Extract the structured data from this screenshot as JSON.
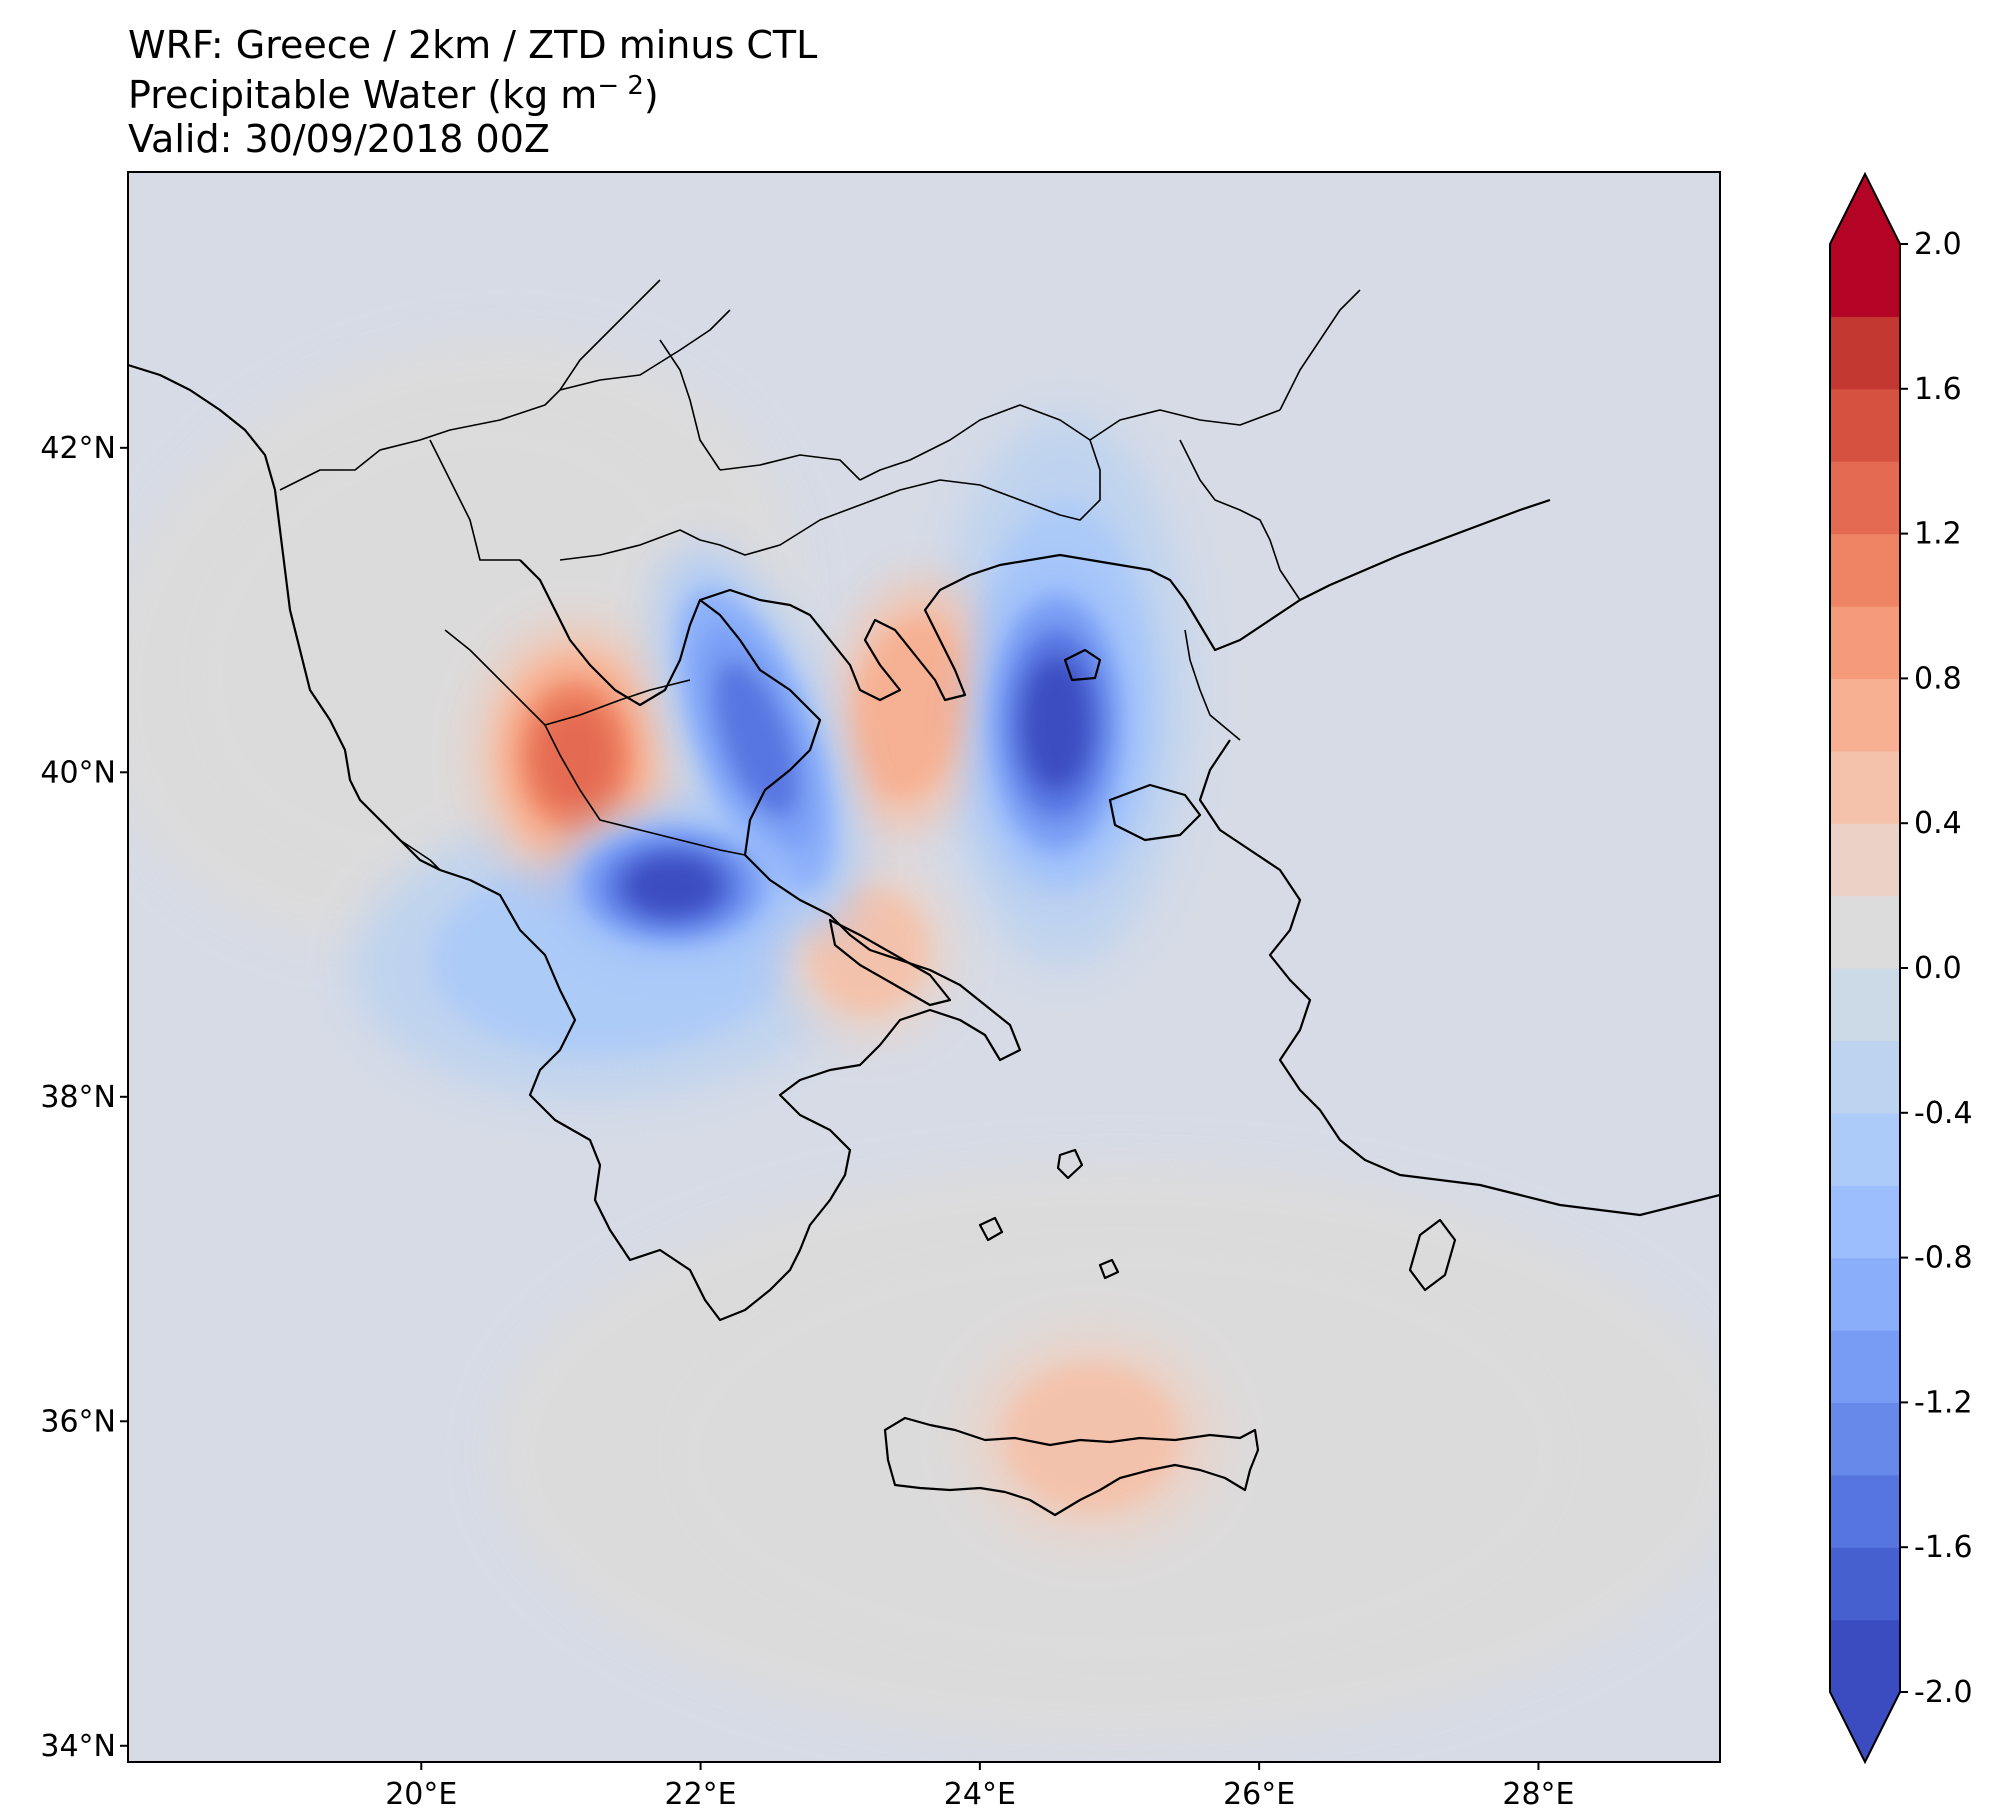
{
  "title": {
    "model_line": "WRF: Greece / 2km / ZTD minus CTL",
    "variable_line": "Precipitable Water (kg m",
    "variable_exponent": "− 2",
    "variable_close": ")",
    "valid_line": "Valid: 30/09/2018 00Z"
  },
  "map": {
    "lon_range": [
      17.9,
      29.3
    ],
    "lat_range": [
      33.9,
      43.7
    ],
    "lat_ticks": [
      {
        "value": 42,
        "label": "42°N"
      },
      {
        "value": 40,
        "label": "40°N"
      },
      {
        "value": 38,
        "label": "38°N"
      },
      {
        "value": 36,
        "label": "36°N"
      },
      {
        "value": 34,
        "label": "34°N"
      }
    ],
    "lon_ticks": [
      {
        "value": 20,
        "label": "20°E"
      },
      {
        "value": 22,
        "label": "22°E"
      },
      {
        "value": 24,
        "label": "24°E"
      },
      {
        "value": 26,
        "label": "26°E"
      },
      {
        "value": 28,
        "label": "28°E"
      }
    ],
    "background_color": "#d6dbe6",
    "features": [
      {
        "name": "western-balkans-positive",
        "lon": 20.2,
        "lat": 40.8,
        "rx_deg": 2.6,
        "ry_deg": 1.8,
        "rot": -25,
        "value": 0.15
      },
      {
        "name": "south-aegean-positive",
        "lon": 25.0,
        "lat": 35.8,
        "rx_deg": 4.5,
        "ry_deg": 1.8,
        "rot": 0,
        "value": 0.15
      },
      {
        "name": "crete-positive-core",
        "lon": 24.8,
        "lat": 35.9,
        "rx_deg": 0.9,
        "ry_deg": 0.65,
        "rot": 0,
        "value": 0.55
      },
      {
        "name": "east-aegean-negative-halo",
        "lon": 24.6,
        "lat": 40.5,
        "rx_deg": 0.9,
        "ry_deg": 1.7,
        "rot": 0,
        "value": -0.45
      },
      {
        "name": "central-greece-negative-halo",
        "lon": 21.4,
        "lat": 38.9,
        "rx_deg": 1.9,
        "ry_deg": 0.9,
        "rot": -5,
        "value": -0.5
      },
      {
        "name": "western-macedonia-positive",
        "lon": 21.1,
        "lat": 40.1,
        "rx_deg": 0.7,
        "ry_deg": 0.8,
        "rot": 0,
        "value": 1.35
      },
      {
        "name": "chalkidiki-positive",
        "lon": 23.5,
        "lat": 40.4,
        "rx_deg": 0.55,
        "ry_deg": 0.8,
        "rot": 10,
        "value": 0.75
      },
      {
        "name": "euboea-positive",
        "lon": 23.2,
        "lat": 38.9,
        "rx_deg": 0.6,
        "ry_deg": 0.55,
        "rot": 0,
        "value": 0.45
      },
      {
        "name": "thermaic-negative",
        "lon": 22.4,
        "lat": 40.2,
        "rx_deg": 0.55,
        "ry_deg": 1.25,
        "rot": -20,
        "value": -1.5
      },
      {
        "name": "thessaly-negative",
        "lon": 21.8,
        "lat": 39.3,
        "rx_deg": 0.85,
        "ry_deg": 0.45,
        "rot": 0,
        "value": -1.85
      },
      {
        "name": "north-aegean-negative",
        "lon": 24.55,
        "lat": 40.3,
        "rx_deg": 0.6,
        "ry_deg": 1.0,
        "rot": 0,
        "value": -2.0
      }
    ]
  },
  "colorbar": {
    "vmin": -2.0,
    "vmax": 2.0,
    "step": 0.2,
    "ticks": [
      "2.0",
      "1.6",
      "1.2",
      "0.8",
      "0.4",
      "0.0",
      "-0.4",
      "-0.8",
      "-1.2",
      "-1.6",
      "-2.0"
    ],
    "colors": [
      "#3a4cc0",
      "#4760d0",
      "#5675df",
      "#6789ea",
      "#789cf4",
      "#8aaefa",
      "#9cbefc",
      "#adcbf8",
      "#bdd3f0",
      "#ccd9e7",
      "#dddcdc",
      "#ebd2c6",
      "#f4c2ab",
      "#f7b092",
      "#f59b7a",
      "#ef8464",
      "#e46b51",
      "#d55240",
      "#c23730",
      "#b40426"
    ]
  }
}
